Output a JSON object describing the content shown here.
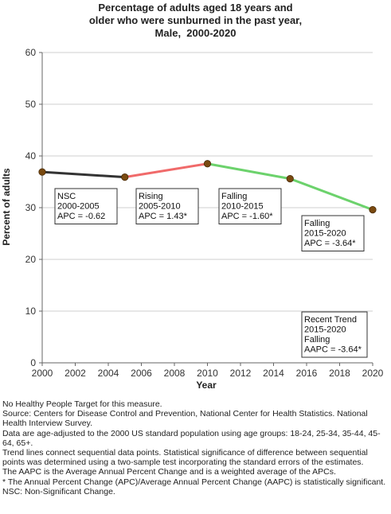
{
  "chart_data": {
    "type": "line",
    "title_lines": [
      "Percentage of adults aged 18 years and",
      "older who were sunburned in the past year,",
      "Male,  2000-2020"
    ],
    "xlabel": "Year",
    "ylabel": "Percent of adults",
    "xlim": [
      2000,
      2020
    ],
    "ylim": [
      0,
      60
    ],
    "x_ticks": [
      2000,
      2002,
      2004,
      2006,
      2008,
      2010,
      2012,
      2014,
      2016,
      2018,
      2020
    ],
    "y_ticks": [
      0,
      10,
      20,
      30,
      40,
      50,
      60
    ],
    "grid": "horizontal",
    "points": [
      {
        "x": 2000,
        "y": 36.9
      },
      {
        "x": 2005,
        "y": 35.9
      },
      {
        "x": 2010,
        "y": 38.5
      },
      {
        "x": 2015,
        "y": 35.6
      },
      {
        "x": 2020,
        "y": 29.6
      }
    ],
    "segments": [
      {
        "from": 2000,
        "to": 2005,
        "color": "#333333"
      },
      {
        "from": 2005,
        "to": 2010,
        "color": "#f06a6a"
      },
      {
        "from": 2010,
        "to": 2020,
        "color": "#6cd26c"
      }
    ],
    "point_color": "#7a4a10",
    "annotations": [
      {
        "lines": [
          "NSC",
          "2000-2005",
          "APC = -0.62"
        ],
        "anchor_x": 2001.5,
        "anchor_y": 33.5
      },
      {
        "lines": [
          "Rising",
          "2005-2010",
          "APC =  1.43*"
        ],
        "anchor_x": 2011.5,
        "anchor_y": 33.5
      },
      {
        "lines": [
          "Falling",
          "2010-2015",
          "APC = -1.60*"
        ],
        "anchor_x": 2011.5,
        "anchor_y": 33.5
      },
      {
        "lines": [
          "Falling",
          "2015-2020",
          "APC = -3.64*"
        ],
        "anchor_x": 2016.5,
        "anchor_y": 29.0
      },
      {
        "lines": [
          "Recent Trend",
          "2015-2020",
          "Falling",
          "AAPC = -3.64*"
        ],
        "anchor_x": 2016.5,
        "anchor_y": 10.0
      }
    ]
  },
  "footnotes": [
    "No Healthy People Target for this measure.",
    "Source: Centers for Disease Control and Prevention, National Center for Health Statistics. National Health Interview Survey.",
    "Data are age-adjusted to the 2000 US standard population using age groups: 18-24, 25-34, 35-44, 45-64, 65+.",
    "Trend lines connect sequential data points. Statistical significance of difference between sequential points was determined using a two-sample test incorporating the standard errors of the estimates.",
    "The AAPC is the Average Annual Percent Change and is a weighted average of the APCs.",
    "* The Annual Percent Change (APC)/Average Annual Percent Change (AAPC) is statistically significant.",
    "NSC: Non-Significant Change."
  ]
}
